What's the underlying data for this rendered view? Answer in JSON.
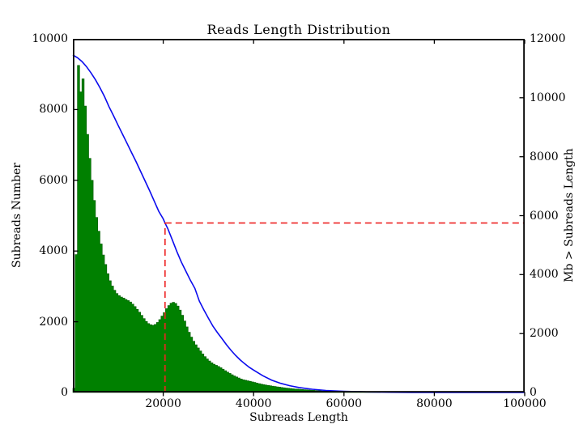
{
  "title": "Reads Length Distribution",
  "colors": {
    "background": "#ffffff",
    "axis": "#000000",
    "histogram": "#008000",
    "histogram_edge": "#005a00",
    "cumulative": "#0b0bee",
    "n50_dash": "#ee2222"
  },
  "chart_data": {
    "type": "histogram+line",
    "title": "Reads Length Distribution",
    "xlabel": "Subreads Length",
    "ylabel_left": "Subreads Number",
    "ylabel_right": "Mb > Subreads Length",
    "xlim": [
      0,
      100000
    ],
    "ylim_left": [
      0,
      10000
    ],
    "ylim_right": [
      0,
      12000
    ],
    "x_ticks": [
      20000,
      40000,
      60000,
      80000,
      100000
    ],
    "y_ticks_left": [
      0,
      2000,
      4000,
      6000,
      8000,
      10000
    ],
    "y_ticks_right": [
      0,
      2000,
      4000,
      6000,
      8000,
      10000,
      12000
    ],
    "grid": false,
    "legend": "none",
    "histogram": {
      "series_name": "Subreads Number",
      "axis": "left",
      "x_start": 0,
      "bin_width": 500,
      "counts": [
        120,
        3900,
        9250,
        8500,
        8870,
        8100,
        7300,
        6620,
        6000,
        5430,
        4950,
        4560,
        4200,
        3890,
        3620,
        3360,
        3160,
        3010,
        2890,
        2800,
        2740,
        2700,
        2670,
        2630,
        2600,
        2560,
        2500,
        2430,
        2350,
        2270,
        2180,
        2090,
        2010,
        1950,
        1915,
        1900,
        1925,
        1980,
        2060,
        2160,
        2260,
        2370,
        2460,
        2525,
        2550,
        2520,
        2445,
        2330,
        2185,
        2020,
        1855,
        1705,
        1565,
        1450,
        1350,
        1260,
        1175,
        1090,
        1015,
        950,
        892,
        840,
        800,
        768,
        738,
        700,
        660,
        618,
        578,
        540,
        502,
        468,
        440,
        412,
        383,
        360,
        345,
        330,
        315,
        300,
        285,
        266,
        250,
        236,
        222,
        210,
        200,
        190,
        180,
        170,
        160,
        151,
        142,
        134,
        126,
        119,
        112,
        106,
        100,
        95,
        90,
        85,
        80,
        75,
        70,
        65,
        61,
        57,
        53,
        49,
        45,
        42,
        38,
        35,
        32,
        29,
        27,
        24,
        22,
        20,
        18,
        16,
        14,
        13,
        11,
        10,
        9,
        8,
        7,
        6,
        5,
        4,
        3,
        3,
        2,
        2
      ]
    },
    "cumulative_mb": {
      "series_name": "Mb > Subreads Length",
      "axis": "right",
      "points": [
        [
          0,
          11450
        ],
        [
          1000,
          11360
        ],
        [
          2000,
          11230
        ],
        [
          3000,
          11060
        ],
        [
          4000,
          10850
        ],
        [
          5000,
          10610
        ],
        [
          6000,
          10340
        ],
        [
          7000,
          10040
        ],
        [
          8000,
          9700
        ],
        [
          9000,
          9390
        ],
        [
          10000,
          9070
        ],
        [
          11000,
          8760
        ],
        [
          12000,
          8450
        ],
        [
          13000,
          8140
        ],
        [
          14000,
          7830
        ],
        [
          15000,
          7500
        ],
        [
          16000,
          7170
        ],
        [
          17000,
          6840
        ],
        [
          18000,
          6500
        ],
        [
          19000,
          6150
        ],
        [
          20000,
          5890
        ],
        [
          20400,
          5750
        ],
        [
          21000,
          5560
        ],
        [
          22000,
          5180
        ],
        [
          23000,
          4790
        ],
        [
          24000,
          4430
        ],
        [
          25000,
          4120
        ],
        [
          26000,
          3810
        ],
        [
          27000,
          3530
        ],
        [
          28000,
          3100
        ],
        [
          29000,
          2800
        ],
        [
          30000,
          2520
        ],
        [
          31000,
          2250
        ],
        [
          32000,
          2030
        ],
        [
          33000,
          1830
        ],
        [
          34000,
          1620
        ],
        [
          35000,
          1430
        ],
        [
          36000,
          1260
        ],
        [
          37000,
          1110
        ],
        [
          38000,
          980
        ],
        [
          39000,
          860
        ],
        [
          40000,
          760
        ],
        [
          42000,
          570
        ],
        [
          44000,
          420
        ],
        [
          46000,
          310
        ],
        [
          48000,
          230
        ],
        [
          50000,
          170
        ],
        [
          53000,
          110
        ],
        [
          56000,
          70
        ],
        [
          60000,
          40
        ],
        [
          65000,
          18
        ],
        [
          70000,
          8
        ],
        [
          75000,
          3
        ],
        [
          80000,
          1
        ],
        [
          90000,
          0
        ],
        [
          100000,
          0
        ]
      ]
    },
    "n50_marker": {
      "x": 20400,
      "mb": 5750,
      "style": "dashed"
    }
  }
}
